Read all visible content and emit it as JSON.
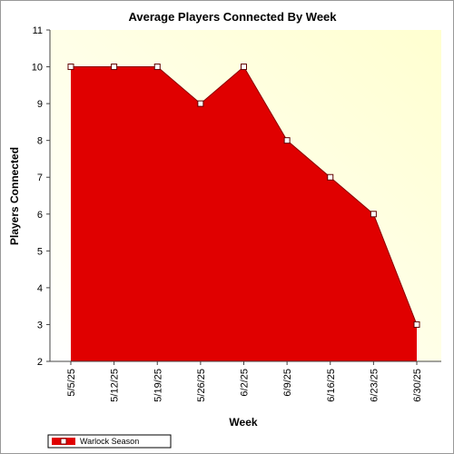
{
  "chart_data": {
    "type": "area",
    "title": "Average Players Connected By Week",
    "xlabel": "Week",
    "ylabel": "Players Connected",
    "categories": [
      "5/5/25",
      "5/12/25",
      "5/19/25",
      "5/26/25",
      "6/2/25",
      "6/9/25",
      "6/16/25",
      "6/23/25",
      "6/30/25"
    ],
    "series": [
      {
        "name": "Warlock Season",
        "values": [
          10,
          10,
          10,
          9,
          10,
          8,
          7,
          6,
          3
        ],
        "color": "#e00000"
      }
    ],
    "ylim": [
      2,
      11
    ],
    "yticks": [
      2,
      3,
      4,
      5,
      6,
      7,
      8,
      9,
      10,
      11
    ],
    "grid": false,
    "legend": "bottom-left",
    "plot_background": "#ffffe6"
  }
}
